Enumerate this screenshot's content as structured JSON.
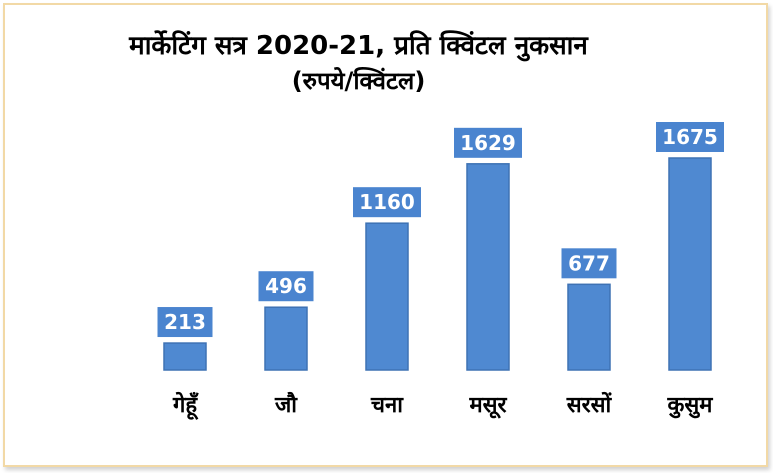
{
  "chart_data": {
    "type": "bar",
    "title": "मार्केटिंग सत्र 2020-21, प्रति क्विंटल नुकसान",
    "subtitle": "(रुपये/क्विंटल)",
    "categories": [
      "गेहूँ",
      "जौ",
      "चना",
      "मसूर",
      "सरसों",
      "कुसुम"
    ],
    "values": [
      213,
      496,
      1160,
      1629,
      677,
      1675
    ],
    "ylim": [
      0,
      1675
    ],
    "grid": false,
    "legend": "none",
    "bar_color": "#4f89d1",
    "label_color": "#ffffff"
  }
}
